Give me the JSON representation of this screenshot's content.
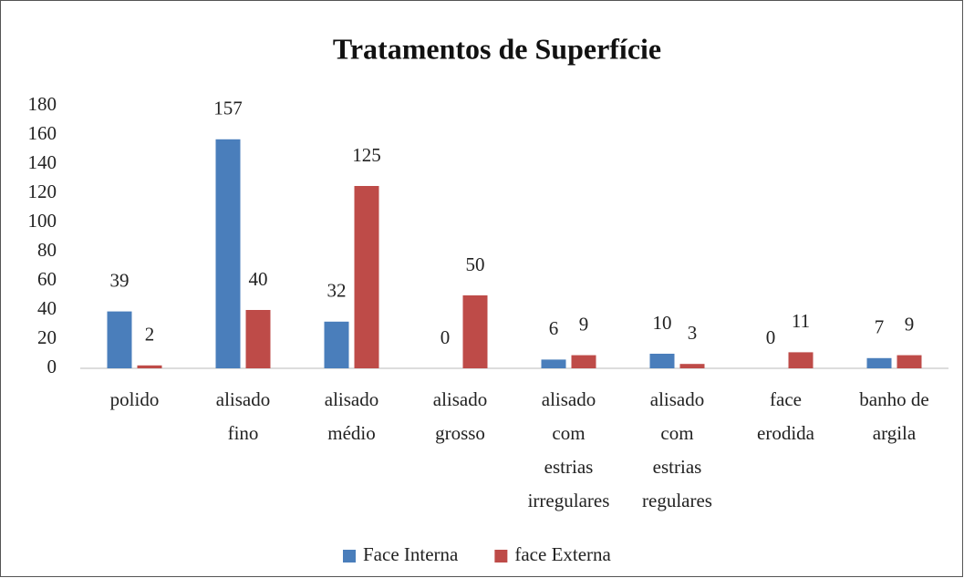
{
  "chart_data": {
    "type": "bar",
    "title": "Tratamentos de Superfície",
    "categories": [
      "polido",
      "alisado\nfino",
      "alisado\nmédio",
      "alisado\ngrosso",
      "alisado\ncom\nestrias\nirregulares",
      "alisado\ncom\nestrias\nregulares",
      "face\nerodida",
      "banho de\nargila"
    ],
    "series": [
      {
        "name": "Face Interna",
        "color": "#4a7ebb",
        "values": [
          39,
          157,
          32,
          0,
          6,
          10,
          0,
          7
        ]
      },
      {
        "name": "face Externa",
        "color": "#be4b48",
        "values": [
          2,
          40,
          125,
          50,
          9,
          3,
          11,
          9
        ]
      }
    ],
    "ylim": [
      0,
      180
    ],
    "yticks": [
      0,
      20,
      40,
      60,
      80,
      100,
      120,
      140,
      160,
      180
    ],
    "grid": false,
    "legend": "bottom"
  }
}
